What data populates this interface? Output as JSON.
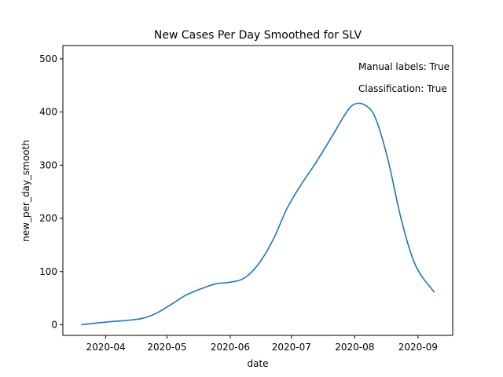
{
  "chart_data": {
    "type": "line",
    "title": "New Cases Per Day Smoothed for SLV",
    "xlabel": "date",
    "ylabel": "new_per_day_smooth",
    "ylim": [
      -20,
      525
    ],
    "yticks": [
      0,
      100,
      200,
      300,
      400,
      500
    ],
    "xlim": [
      "2020-03-11",
      "2020-09-18"
    ],
    "xticks": [
      "2020-04",
      "2020-05",
      "2020-06",
      "2020-07",
      "2020-08",
      "2020-09"
    ],
    "grid": false,
    "line_color": "#1f77b4",
    "annotations": [
      "Manual labels: True",
      "Classification: True"
    ],
    "series": [
      {
        "x": [
          "2020-03-20",
          "2020-03-27",
          "2020-04-04",
          "2020-04-11",
          "2020-04-19",
          "2020-04-26",
          "2020-05-03",
          "2020-05-10",
          "2020-05-18",
          "2020-05-25",
          "2020-06-01",
          "2020-06-08",
          "2020-06-15",
          "2020-06-22",
          "2020-06-29",
          "2020-07-06",
          "2020-07-13",
          "2020-07-21",
          "2020-07-28",
          "2020-08-01",
          "2020-08-06",
          "2020-08-11",
          "2020-08-17",
          "2020-08-24",
          "2020-08-31",
          "2020-09-09"
        ],
        "values": [
          0,
          3,
          6,
          8,
          12,
          22,
          38,
          55,
          68,
          77,
          80,
          88,
          115,
          160,
          220,
          265,
          305,
          355,
          400,
          415,
          413,
          390,
          315,
          195,
          110,
          61
        ]
      }
    ]
  }
}
